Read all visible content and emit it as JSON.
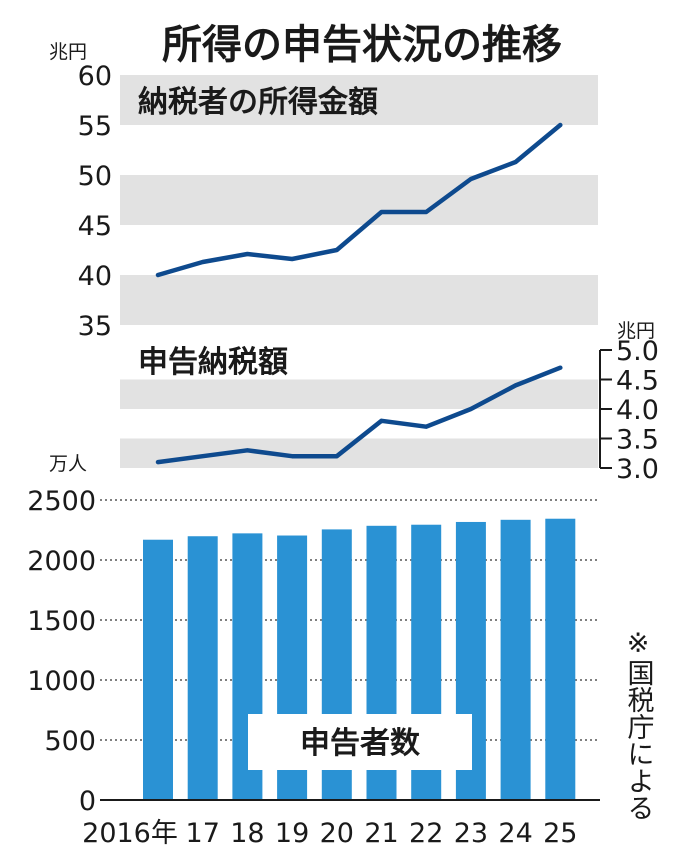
{
  "title": "所得の申告状況の推移",
  "source_note": "※国税庁による",
  "colors": {
    "line": "#0e4a8e",
    "bar": "#2a92d4",
    "band": "#e2e2e2",
    "text": "#1a1a1a",
    "label_box": "#ffffff"
  },
  "chart_data": [
    {
      "type": "line",
      "title": "納税者の所得金額",
      "unit": "兆円",
      "x": [
        "2016",
        "17",
        "18",
        "19",
        "20",
        "21",
        "22",
        "23",
        "24",
        "25"
      ],
      "values": [
        40.0,
        41.3,
        42.1,
        41.6,
        42.5,
        46.3,
        46.3,
        49.6,
        51.3,
        55.0
      ],
      "ylim": [
        35,
        60
      ],
      "yticks": [
        "35",
        "40",
        "45",
        "50",
        "55",
        "60"
      ]
    },
    {
      "type": "line",
      "title": "申告納税額",
      "unit": "兆円",
      "x": [
        "2016",
        "17",
        "18",
        "19",
        "20",
        "21",
        "22",
        "23",
        "24",
        "25"
      ],
      "values": [
        3.1,
        3.2,
        3.3,
        3.2,
        3.2,
        3.8,
        3.7,
        4.0,
        4.4,
        4.7
      ],
      "ylim": [
        3.0,
        5.0
      ],
      "yticks": [
        "3.0",
        "3.5",
        "4.0",
        "4.5",
        "5.0"
      ]
    },
    {
      "type": "bar",
      "title": "申告者数",
      "unit": "万人",
      "categories": [
        "2016年",
        "17",
        "18",
        "19",
        "20",
        "21",
        "22",
        "23",
        "24",
        "25"
      ],
      "values": [
        2169,
        2198,
        2222,
        2204,
        2255,
        2285,
        2294,
        2317,
        2335,
        2344
      ],
      "ylim": [
        0,
        2500
      ],
      "yticks": [
        "0",
        "500",
        "1000",
        "1500",
        "2000",
        "2500"
      ]
    }
  ]
}
